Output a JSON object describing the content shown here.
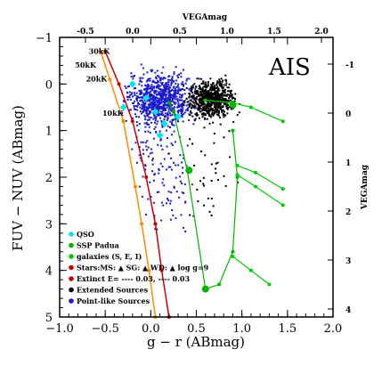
{
  "chart_data": {
    "type": "scatter",
    "survey_label": "AIS",
    "xlabel": "g − r (ABmag)",
    "ylabel": "FUV − NUV (ABmag)",
    "top_xlabel": "VEGAmag",
    "right_ylabel": "VEGAmag",
    "xlim": [
      -1.0,
      2.0
    ],
    "ylim": [
      5.0,
      -1.0
    ],
    "x_ticks": [
      "−1.0",
      "−0.5",
      "0.0",
      "0.5",
      "1.0",
      "1.5",
      "2.0"
    ],
    "y_ticks": [
      "−1",
      "0",
      "1",
      "2",
      "3",
      "4",
      "5"
    ],
    "top_ticks": [
      "-0.5",
      "0.0",
      "0.5",
      "1.0",
      "1.5",
      "2.0"
    ],
    "right_ticks": [
      "-1",
      "0",
      "1",
      "2",
      "3",
      "4"
    ],
    "colors": {
      "point_like": "#1a1acc",
      "extended": "#000000",
      "qso": "#00e5ee",
      "ssp": "#00b400",
      "galaxies": "#00cc00",
      "stars": "#ff8c00",
      "wd": "#9400d3",
      "stars_label": "#cc0000",
      "ms_line": "#ff8c00",
      "wd_line": "#cc0000"
    },
    "legend": [
      {
        "label": "QSO",
        "color": "#00e5ee"
      },
      {
        "label": "SSP Padua",
        "color": "#00b400"
      },
      {
        "label": "galaxies (S, E, I)",
        "color": "#00cc00"
      },
      {
        "label": "Stars:MS: ▲ SG: ▲ WD: ▲ log g=9",
        "color": "#cc0000"
      },
      {
        "label": "Extinct E= ---- 0.03, ---- 0.03",
        "color": "#cc0000"
      },
      {
        "label": "Extended Sources",
        "color": "#000000"
      },
      {
        "label": "Point-like Sources",
        "color": "#1a1acc"
      }
    ],
    "temperature_labels": [
      {
        "label": "30kK",
        "x": -0.45,
        "y": -0.65
      },
      {
        "label": "50kK",
        "x": -0.6,
        "y": -0.35
      },
      {
        "label": "20kK",
        "x": -0.48,
        "y": -0.05
      },
      {
        "label": "10kK",
        "x": -0.3,
        "y": 0.68
      }
    ],
    "series": [
      {
        "name": "Main Sequence stars",
        "kind": "line",
        "points": [
          [
            -0.55,
            -0.7
          ],
          [
            -0.45,
            -0.1
          ],
          [
            -0.3,
            0.8
          ],
          [
            -0.17,
            2.2
          ],
          [
            -0.1,
            3.0
          ],
          [
            -0.02,
            4.0
          ],
          [
            0.05,
            5.0
          ]
        ]
      },
      {
        "name": "White Dwarfs log g=9",
        "kind": "line",
        "points": [
          [
            -0.5,
            -0.7
          ],
          [
            -0.35,
            0.0
          ],
          [
            -0.2,
            0.8
          ],
          [
            -0.05,
            2.0
          ],
          [
            0.05,
            3.0
          ],
          [
            0.12,
            4.0
          ],
          [
            0.2,
            5.0
          ]
        ]
      },
      {
        "name": "SSP Padua",
        "kind": "line",
        "points": [
          [
            0.2,
            0.4
          ],
          [
            0.25,
            0.6
          ],
          [
            0.4,
            1.85
          ],
          [
            0.6,
            4.4
          ],
          [
            0.75,
            4.3
          ],
          [
            0.9,
            3.6
          ],
          [
            0.95,
            2.0
          ],
          [
            0.9,
            1.0
          ]
        ]
      },
      {
        "name": "galaxies",
        "kind": "line",
        "points": [
          [
            0.6,
            0.35
          ],
          [
            0.9,
            0.4
          ],
          [
            1.1,
            0.5
          ],
          [
            1.45,
            0.8
          ]
        ]
      },
      {
        "name": "galaxies E",
        "kind": "line",
        "points": [
          [
            0.95,
            1.75
          ],
          [
            1.15,
            1.9
          ],
          [
            1.45,
            2.25
          ]
        ]
      },
      {
        "name": "galaxies I",
        "kind": "line",
        "points": [
          [
            0.95,
            1.95
          ],
          [
            1.15,
            2.2
          ],
          [
            1.45,
            2.6
          ]
        ]
      },
      {
        "name": "galaxies S",
        "kind": "line",
        "points": [
          [
            0.9,
            3.7
          ],
          [
            1.1,
            4.0
          ],
          [
            1.3,
            4.3
          ]
        ]
      },
      {
        "name": "QSO",
        "kind": "markers",
        "points": [
          [
            -0.2,
            0.0
          ],
          [
            -0.05,
            0.3
          ],
          [
            0.05,
            0.6
          ],
          [
            0.15,
            0.85
          ],
          [
            0.3,
            0.7
          ],
          [
            0.1,
            1.1
          ],
          [
            -0.3,
            0.5
          ]
        ]
      },
      {
        "name": "SSP markers",
        "kind": "markers",
        "points": [
          [
            0.42,
            1.85
          ],
          [
            0.6,
            4.4
          ],
          [
            0.9,
            0.45
          ]
        ]
      }
    ],
    "density": {
      "point_like": {
        "x_center": 0.1,
        "y_center": 0.3,
        "x_spread": 0.35,
        "y_spread": 0.6,
        "count": 900
      },
      "extended": {
        "x_center": 0.65,
        "y_center": 0.3,
        "x_spread": 0.25,
        "y_spread": 0.45,
        "count": 700
      }
    }
  }
}
